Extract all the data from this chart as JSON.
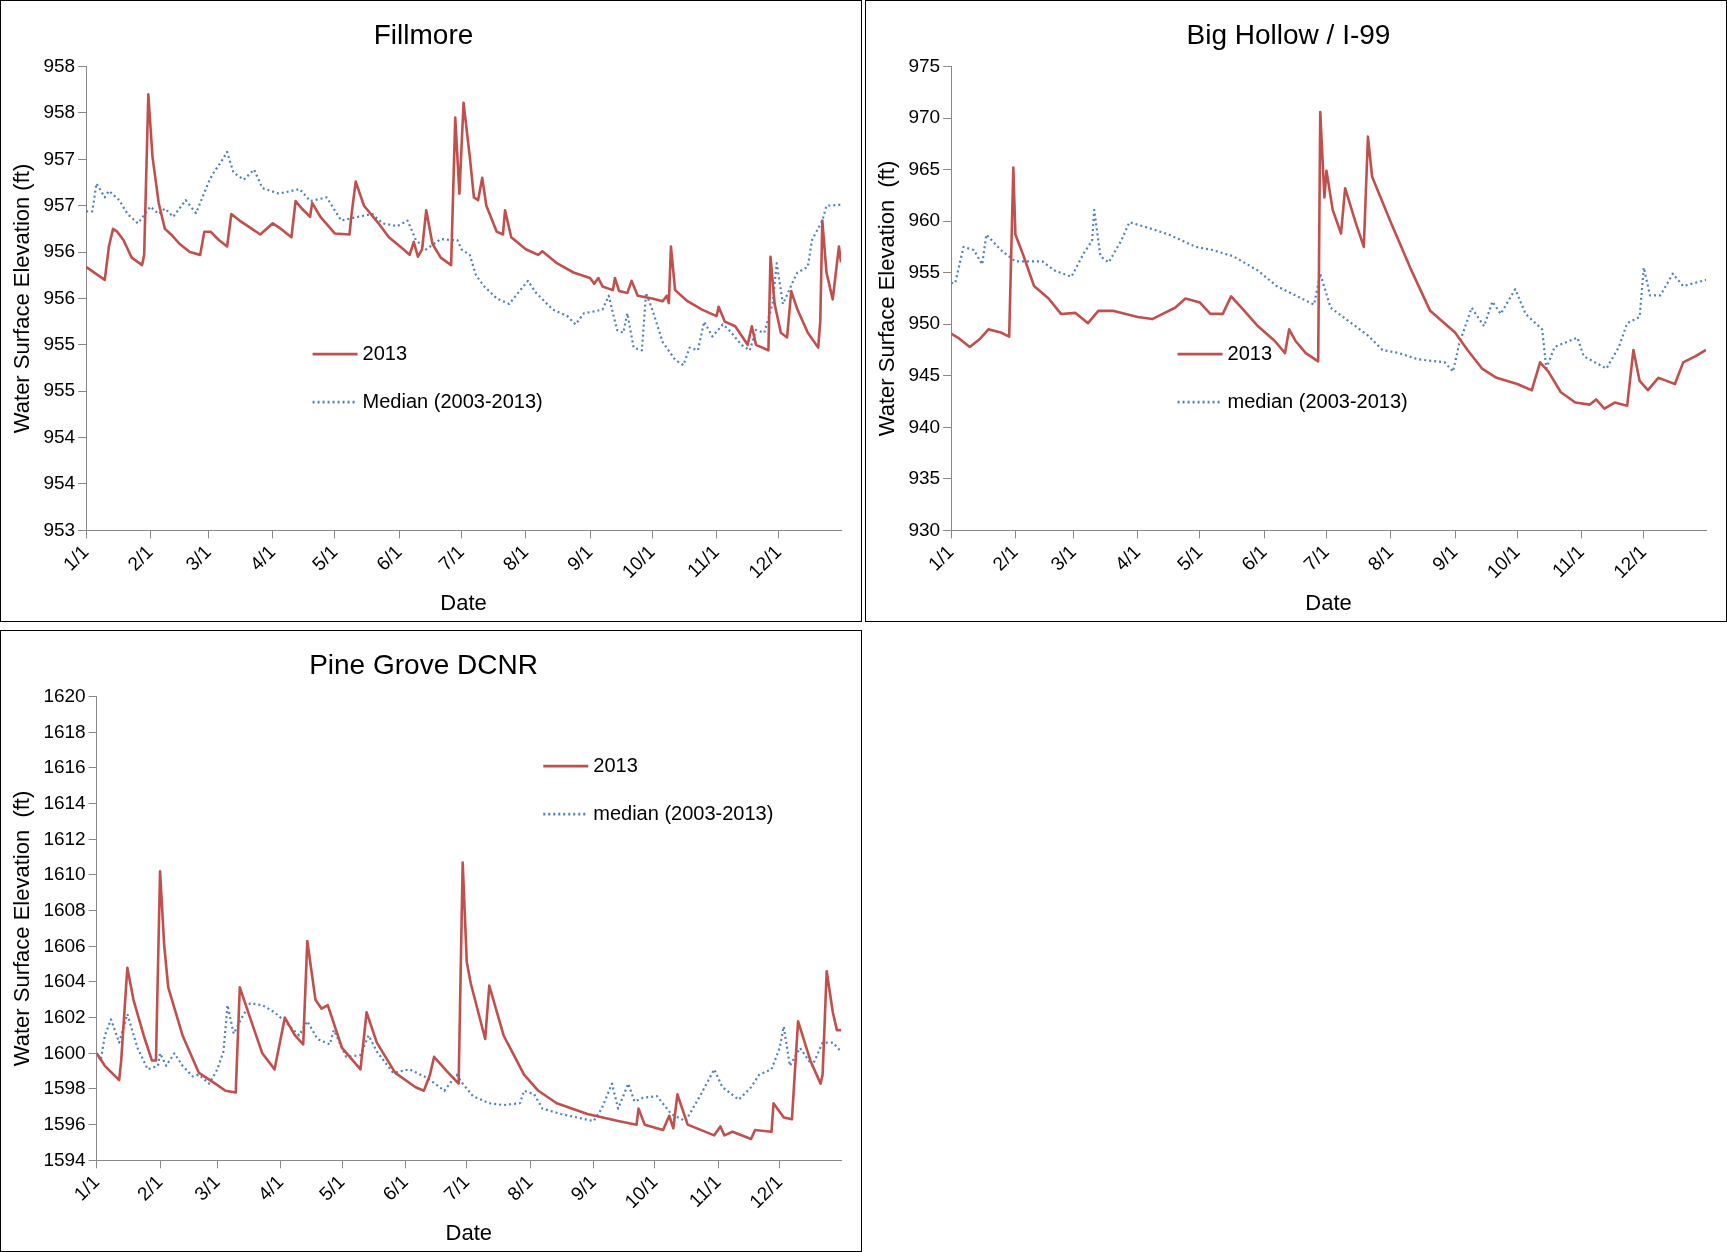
{
  "chart_data": [
    {
      "type": "line",
      "title": "Fillmore",
      "xlabel": "Date",
      "ylabel": "Water Surface Elevation (ft)",
      "legend": "bottom",
      "xlim": [
        "--01-01",
        "--12-31"
      ],
      "xticks": [
        {
          "value": "--01-01",
          "label": "1/1"
        },
        {
          "value": "--02-01",
          "label": "2/1"
        },
        {
          "value": "--03-01",
          "label": "3/1"
        },
        {
          "value": "--04-01",
          "label": "4/1"
        },
        {
          "value": "--05-01",
          "label": "5/1"
        },
        {
          "value": "--06-01",
          "label": "6/1"
        },
        {
          "value": "--07-01",
          "label": "7/1"
        },
        {
          "value": "--08-01",
          "label": "8/1"
        },
        {
          "value": "--09-01",
          "label": "9/1"
        },
        {
          "value": "--10-01",
          "label": "10/1"
        },
        {
          "value": "--11-01",
          "label": "11/1"
        },
        {
          "value": "--12-01",
          "label": "12/1"
        }
      ],
      "ylim": [
        953,
        958
      ],
      "yticks": [
        953,
        {
          "value": 953.5,
          "label": "954"
        },
        954,
        {
          "value": 954.5,
          "label": "955"
        },
        955,
        {
          "value": 955.5,
          "label": "956"
        },
        956,
        {
          "value": 956.5,
          "label": "957"
        },
        957,
        {
          "value": 957.5,
          "label": "958"
        },
        958
      ],
      "series": [
        {
          "name": "2013",
          "color": "#c0504d",
          "line_style": "solid",
          "x": [
            "--01-01",
            "--01-10",
            "--01-12",
            "--01-14",
            "--01-16",
            "--01-19",
            "--01-23",
            "--01-28",
            "--01-29",
            "--01-31",
            "--02-02",
            "--02-05",
            "--02-08",
            "--02-11",
            "--02-15",
            "--02-20",
            "--02-25",
            "--02-27",
            "--03-02",
            "--03-06",
            "--03-10",
            "--03-12",
            "--03-16",
            "--03-20",
            "--03-26",
            "--04-01",
            "--04-05",
            "--04-10",
            "--04-12",
            "--04-15",
            "--04-19",
            "--04-20",
            "--04-24",
            "--05-01",
            "--05-08",
            "--05-09",
            "--05-11",
            "--05-15",
            "--05-22",
            "--05-27",
            "--06-03",
            "--06-06",
            "--06-08",
            "--06-10",
            "--06-12",
            "--06-14",
            "--06-17",
            "--06-21",
            "--06-26",
            "--06-28",
            "--06-30",
            "--07-02",
            "--07-05",
            "--07-07",
            "--07-09",
            "--07-11",
            "--07-13",
            "--07-18",
            "--07-21",
            "--07-22",
            "--07-25",
            "--08-01",
            "--08-07",
            "--08-09",
            "--08-16",
            "--08-24",
            "--09-01",
            "--09-03",
            "--09-05",
            "--09-07",
            "--09-12",
            "--09-13",
            "--09-15",
            "--09-19",
            "--09-21",
            "--09-24",
            "--10-01",
            "--10-06",
            "--10-08",
            "--10-09",
            "--10-10",
            "--10-12",
            "--10-18",
            "--10-25",
            "--11-01",
            "--11-02",
            "--11-05",
            "--11-10",
            "--11-16",
            "--11-18",
            "--11-20",
            "--11-26",
            "--11-27",
            "--11-29",
            "--12-02",
            "--12-05",
            "--12-07",
            "--12-10",
            "--12-15",
            "--12-20",
            "--12-21",
            "--12-22",
            "--12-24",
            "--12-27",
            "--12-30",
            "--12-31"
          ],
          "values": [
            955.84,
            955.7,
            956.06,
            956.25,
            956.22,
            956.13,
            955.94,
            955.86,
            955.97,
            957.7,
            957.03,
            956.53,
            956.25,
            956.19,
            956.09,
            956.0,
            955.97,
            956.22,
            956.22,
            956.13,
            956.06,
            956.41,
            956.34,
            956.28,
            956.19,
            956.31,
            956.25,
            956.16,
            956.55,
            956.47,
            956.38,
            956.53,
            956.38,
            956.2,
            956.19,
            956.41,
            956.76,
            956.5,
            956.31,
            956.16,
            956.03,
            955.97,
            956.11,
            955.95,
            956.03,
            956.45,
            956.09,
            955.94,
            955.86,
            957.45,
            956.63,
            957.61,
            957.03,
            956.59,
            956.56,
            956.8,
            956.5,
            956.22,
            956.19,
            956.45,
            956.16,
            956.03,
            955.97,
            956.01,
            955.88,
            955.78,
            955.72,
            955.66,
            955.72,
            955.63,
            955.59,
            955.72,
            955.58,
            955.56,
            955.69,
            955.53,
            955.5,
            955.47,
            955.53,
            955.45,
            956.06,
            955.59,
            955.47,
            955.38,
            955.31,
            955.41,
            955.25,
            955.2,
            955.0,
            955.2,
            955.0,
            954.94,
            955.95,
            955.44,
            955.13,
            955.08,
            955.58,
            955.38,
            955.13,
            954.97,
            955.25,
            956.34,
            955.78,
            955.49,
            956.06,
            955.89
          ]
        },
        {
          "name": "Median (2003-2013)",
          "color": "#4f81bd",
          "line_style": "dotted",
          "x": [
            "--01-01",
            "--01-04",
            "--01-06",
            "--01-10",
            "--01-12",
            "--01-17",
            "--01-21",
            "--01-26",
            "--02-01",
            "--02-05",
            "--02-08",
            "--02-12",
            "--02-18",
            "--02-23",
            "--03-01",
            "--03-03",
            "--03-07",
            "--03-10",
            "--03-13",
            "--03-18",
            "--03-23",
            "--03-27",
            "--04-04",
            "--04-14",
            "--04-19",
            "--04-27",
            "--05-04",
            "--05-12",
            "--05-19",
            "--05-24",
            "--05-31",
            "--06-05",
            "--06-09",
            "--06-14",
            "--06-21",
            "--06-26",
            "--06-29",
            "--07-01",
            "--07-05",
            "--07-08",
            "--07-12",
            "--07-18",
            "--07-24",
            "--08-02",
            "--08-06",
            "--08-14",
            "--08-21",
            "--08-25",
            "--08-29",
            "--09-03",
            "--09-07",
            "--09-10",
            "--09-14",
            "--09-17",
            "--09-19",
            "--09-22",
            "--09-26",
            "--09-28",
            "--10-01",
            "--10-06",
            "--10-12",
            "--10-16",
            "--10-19",
            "--10-23",
            "--10-26",
            "--10-30",
            "--11-04",
            "--11-07",
            "--11-13",
            "--11-17",
            "--11-20",
            "--11-24",
            "--11-28",
            "--11-30",
            "--12-03",
            "--12-08",
            "--12-10",
            "--12-15",
            "--12-17",
            "--12-22",
            "--12-24",
            "--12-31"
          ],
          "values": [
            956.44,
            956.44,
            956.74,
            956.59,
            956.66,
            956.56,
            956.41,
            956.31,
            956.49,
            956.41,
            956.47,
            956.38,
            956.56,
            956.42,
            956.75,
            956.84,
            956.97,
            957.08,
            956.86,
            956.78,
            956.89,
            956.69,
            956.63,
            956.68,
            956.55,
            956.59,
            956.34,
            956.38,
            956.41,
            956.31,
            956.28,
            956.34,
            956.13,
            956.03,
            956.14,
            956.13,
            956.13,
            956.03,
            955.97,
            955.75,
            955.63,
            955.5,
            955.44,
            955.69,
            955.56,
            955.38,
            955.31,
            955.22,
            955.34,
            955.36,
            955.38,
            955.53,
            955.16,
            955.13,
            955.34,
            954.97,
            954.94,
            955.56,
            955.38,
            955.03,
            954.84,
            954.78,
            954.97,
            954.94,
            955.25,
            955.09,
            955.22,
            955.16,
            955.0,
            954.94,
            955.16,
            955.13,
            955.44,
            955.88,
            955.44,
            955.69,
            955.78,
            955.84,
            956.13,
            956.34,
            956.5,
            956.51
          ]
        }
      ]
    },
    {
      "type": "line",
      "title": "Big Hollow / I-99",
      "xlabel": "Date",
      "ylabel": "Water Surface Elevation  (ft)",
      "legend": "bottom",
      "xlim": [
        "--01-01",
        "--12-31"
      ],
      "xticks": [
        {
          "value": "--01-01",
          "label": "1/1"
        },
        {
          "value": "--02-01",
          "label": "2/1"
        },
        {
          "value": "--03-01",
          "label": "3/1"
        },
        {
          "value": "--04-01",
          "label": "4/1"
        },
        {
          "value": "--05-01",
          "label": "5/1"
        },
        {
          "value": "--06-01",
          "label": "6/1"
        },
        {
          "value": "--07-01",
          "label": "7/1"
        },
        {
          "value": "--08-01",
          "label": "8/1"
        },
        {
          "value": "--09-01",
          "label": "9/1"
        },
        {
          "value": "--10-01",
          "label": "10/1"
        },
        {
          "value": "--11-01",
          "label": "11/1"
        },
        {
          "value": "--12-01",
          "label": "12/1"
        }
      ],
      "ylim": [
        930,
        975
      ],
      "yticks": [
        930,
        935,
        940,
        945,
        950,
        955,
        960,
        965,
        970,
        975
      ],
      "series": [
        {
          "name": "2013",
          "color": "#c0504d",
          "line_style": "solid",
          "x": [
            "--01-01",
            "--01-05",
            "--01-10",
            "--01-15",
            "--01-19",
            "--01-25",
            "--01-29",
            "--01-31",
            "--02-01",
            "--02-05",
            "--02-10",
            "--02-17",
            "--02-23",
            "--03-02",
            "--03-08",
            "--03-13",
            "--03-20",
            "--04-01",
            "--04-08",
            "--04-13",
            "--04-19",
            "--04-24",
            "--05-01",
            "--05-06",
            "--05-12",
            "--05-16",
            "--05-21",
            "--05-29",
            "--06-06",
            "--06-11",
            "--06-13",
            "--06-16",
            "--06-21",
            "--06-27",
            "--06-28",
            "--06-30",
            "--07-01",
            "--07-04",
            "--07-08",
            "--07-10",
            "--07-15",
            "--07-19",
            "--07-21",
            "--07-23",
            "--08-01",
            "--08-11",
            "--08-20",
            "--09-01",
            "--09-07",
            "--09-14",
            "--09-21",
            "--10-01",
            "--10-08",
            "--10-12",
            "--10-16",
            "--10-22",
            "--10-29",
            "--11-05",
            "--11-08",
            "--11-12",
            "--11-17",
            "--11-23",
            "--11-26",
            "--11-29",
            "--12-03",
            "--12-08",
            "--12-12",
            "--12-16",
            "--12-20",
            "--12-26",
            "--12-31"
          ],
          "values": [
            949.1,
            948.6,
            947.8,
            948.6,
            949.5,
            949.2,
            948.8,
            965.2,
            958.7,
            956.6,
            953.7,
            952.5,
            951.0,
            951.1,
            950.1,
            951.3,
            951.3,
            950.7,
            950.5,
            951.0,
            951.6,
            952.5,
            952.1,
            951.0,
            951.0,
            952.7,
            951.6,
            949.8,
            948.4,
            947.2,
            949.5,
            948.4,
            947.2,
            946.4,
            970.6,
            962.3,
            964.9,
            961.1,
            958.8,
            963.2,
            959.9,
            957.5,
            968.2,
            964.3,
            959.9,
            955.2,
            951.3,
            949.2,
            947.5,
            945.7,
            944.8,
            944.2,
            943.6,
            946.3,
            945.4,
            943.4,
            942.4,
            942.2,
            942.7,
            941.8,
            942.4,
            942.1,
            947.5,
            944.5,
            943.6,
            944.8,
            944.5,
            944.2,
            946.3,
            946.9,
            947.5
          ]
        },
        {
          "name": "median (2003-2013)",
          "color": "#4f81bd",
          "line_style": "dotted",
          "x": [
            "--01-01",
            "--01-03",
            "--01-07",
            "--01-12",
            "--01-16",
            "--01-18",
            "--01-25",
            "--02-01",
            "--02-07",
            "--02-14",
            "--02-20",
            "--02-28",
            "--03-06",
            "--03-10",
            "--03-11",
            "--03-14",
            "--03-18",
            "--03-24",
            "--03-28",
            "--04-07",
            "--04-16",
            "--04-29",
            "--05-07",
            "--05-17",
            "--05-29",
            "--06-07",
            "--06-16",
            "--06-25",
            "--06-28",
            "--07-03",
            "--07-11",
            "--07-21",
            "--07-28",
            "--08-05",
            "--08-14",
            "--08-27",
            "--08-31",
            "--09-03",
            "--09-09",
            "--09-15",
            "--09-19",
            "--09-23",
            "--09-30",
            "--10-05",
            "--10-13",
            "--10-15",
            "--10-19",
            "--10-30",
            "--11-02",
            "--11-13",
            "--11-19",
            "--11-23",
            "--11-29",
            "--12-01",
            "--12-04",
            "--12-09",
            "--12-15",
            "--12-20",
            "--12-31"
          ],
          "values": [
            954.0,
            954.0,
            957.5,
            957.2,
            955.8,
            958.7,
            957.2,
            956.1,
            956.1,
            956.1,
            955.2,
            954.6,
            956.9,
            958.1,
            961.1,
            956.6,
            956.0,
            958.1,
            959.9,
            959.3,
            958.7,
            957.5,
            957.2,
            956.6,
            955.2,
            953.7,
            952.8,
            951.9,
            954.9,
            951.6,
            950.4,
            948.9,
            947.5,
            947.2,
            946.6,
            946.3,
            945.4,
            948.1,
            951.6,
            949.8,
            952.2,
            951.0,
            953.4,
            951.0,
            949.5,
            945.7,
            947.8,
            948.7,
            946.9,
            945.7,
            947.8,
            950.1,
            950.7,
            955.5,
            952.8,
            952.8,
            954.9,
            953.7,
            954.3
          ]
        }
      ]
    },
    {
      "type": "line",
      "title": "Pine Grove DCNR",
      "xlabel": "Date",
      "ylabel": "Water Surface Elevation  (ft)",
      "legend": "top right",
      "xlim": [
        "--01-01",
        "--12-31"
      ],
      "xticks": [
        {
          "value": "--01-01",
          "label": "1/1"
        },
        {
          "value": "--02-01",
          "label": "2/1"
        },
        {
          "value": "--03-01",
          "label": "3/1"
        },
        {
          "value": "--04-01",
          "label": "4/1"
        },
        {
          "value": "--05-01",
          "label": "5/1"
        },
        {
          "value": "--06-01",
          "label": "6/1"
        },
        {
          "value": "--07-01",
          "label": "7/1"
        },
        {
          "value": "--08-01",
          "label": "8/1"
        },
        {
          "value": "--09-01",
          "label": "9/1"
        },
        {
          "value": "--10-01",
          "label": "10/1"
        },
        {
          "value": "--11-01",
          "label": "11/1"
        },
        {
          "value": "--12-01",
          "label": "12/1"
        }
      ],
      "ylim": [
        1594,
        1620
      ],
      "yticks": [
        1594,
        1596,
        1598,
        1600,
        1602,
        1604,
        1606,
        1608,
        1610,
        1612,
        1614,
        1616,
        1618,
        1620
      ],
      "series": [
        {
          "name": "2013",
          "color": "#c0504d",
          "line_style": "solid",
          "x": [
            "--01-01",
            "--01-05",
            "--01-12",
            "--01-13",
            "--01-16",
            "--01-19",
            "--01-24",
            "--01-28",
            "--01-30",
            "--02-01",
            "--02-03",
            "--02-05",
            "--02-12",
            "--02-20",
            "--02-28",
            "--03-05",
            "--03-10",
            "--03-12",
            "--03-17",
            "--03-23",
            "--03-29",
            "--04-03",
            "--04-08",
            "--04-12",
            "--04-14",
            "--04-18",
            "--04-21",
            "--04-24",
            "--05-01",
            "--05-10",
            "--05-13",
            "--05-18",
            "--05-27",
            "--06-06",
            "--06-10",
            "--06-13",
            "--06-15",
            "--06-22",
            "--06-27",
            "--06-29",
            "--07-01",
            "--07-03",
            "--07-10",
            "--07-12",
            "--07-19",
            "--07-29",
            "--08-05",
            "--08-14",
            "--08-29",
            "--09-13",
            "--09-22",
            "--09-23",
            "--09-26",
            "--10-05",
            "--10-08",
            "--10-10",
            "--10-12",
            "--10-17",
            "--10-30",
            "--11-02",
            "--11-04",
            "--11-08",
            "--11-17",
            "--11-19",
            "--11-27",
            "--11-28",
            "--12-03",
            "--12-07",
            "--12-10",
            "--12-16",
            "--12-21",
            "--12-22",
            "--12-24",
            "--12-27",
            "--12-29",
            "--12-31"
          ],
          "values": [
            1600.0,
            1599.3,
            1598.5,
            1599.6,
            1604.8,
            1603.0,
            1601.0,
            1599.6,
            1599.6,
            1610.2,
            1606.1,
            1603.7,
            1601.0,
            1598.9,
            1598.3,
            1597.9,
            1597.8,
            1603.7,
            1602.0,
            1600.0,
            1599.1,
            1602.0,
            1601.0,
            1600.5,
            1606.3,
            1603.0,
            1602.5,
            1602.7,
            1600.3,
            1599.1,
            1602.3,
            1600.6,
            1598.9,
            1598.1,
            1597.9,
            1598.8,
            1599.8,
            1598.9,
            1598.3,
            1610.7,
            1605.1,
            1603.9,
            1600.8,
            1603.8,
            1601.0,
            1598.8,
            1597.9,
            1597.2,
            1596.6,
            1596.2,
            1596.0,
            1596.9,
            1596.0,
            1595.7,
            1596.5,
            1595.8,
            1597.7,
            1596.0,
            1595.4,
            1595.9,
            1595.4,
            1595.6,
            1595.2,
            1595.7,
            1595.6,
            1597.2,
            1596.4,
            1596.3,
            1601.8,
            1599.6,
            1598.3,
            1598.8,
            1604.6,
            1602.3,
            1601.3,
            1601.3
          ]
        },
        {
          "name": "median (2003-2013)",
          "color": "#4f81bd",
          "line_style": "dotted",
          "x": [
            "--01-01",
            "--01-03",
            "--01-05",
            "--01-08",
            "--01-12",
            "--01-16",
            "--01-21",
            "--01-26",
            "--01-31",
            "--02-01",
            "--02-04",
            "--02-08",
            "--02-12",
            "--02-17",
            "--02-20",
            "--02-25",
            "--03-01",
            "--03-04",
            "--03-06",
            "--03-09",
            "--03-13",
            "--03-17",
            "--03-23",
            "--03-29",
            "--04-03",
            "--04-10",
            "--04-14",
            "--04-19",
            "--04-25",
            "--04-27",
            "--05-03",
            "--05-10",
            "--05-14",
            "--05-18",
            "--05-26",
            "--06-03",
            "--06-12",
            "--06-20",
            "--06-26",
            "--06-29",
            "--07-04",
            "--07-12",
            "--07-19",
            "--07-27",
            "--07-29",
            "--08-03",
            "--08-07",
            "--08-16",
            "--08-24",
            "--09-01",
            "--09-05",
            "--09-10",
            "--09-13",
            "--09-18",
            "--09-21",
            "--09-25",
            "--10-02",
            "--10-09",
            "--10-16",
            "--10-23",
            "--10-30",
            "--11-03",
            "--11-11",
            "--11-17",
            "--11-21",
            "--11-27",
            "--12-01",
            "--12-03",
            "--12-06",
            "--12-11",
            "--12-17",
            "--12-22",
            "--12-27",
            "--12-31"
          ],
          "values": [
            1600.0,
            1599.6,
            1601.0,
            1601.9,
            1600.6,
            1602.2,
            1600.3,
            1599.1,
            1599.3,
            1600.0,
            1599.3,
            1600.0,
            1599.3,
            1598.7,
            1598.8,
            1598.3,
            1599.1,
            1600.1,
            1602.7,
            1601.1,
            1602.0,
            1602.8,
            1602.7,
            1602.3,
            1601.8,
            1601.0,
            1601.8,
            1600.8,
            1600.5,
            1601.3,
            1599.8,
            1599.9,
            1601.0,
            1600.1,
            1598.9,
            1599.1,
            1598.6,
            1597.9,
            1598.8,
            1598.3,
            1597.6,
            1597.2,
            1597.1,
            1597.2,
            1597.9,
            1597.7,
            1596.9,
            1596.6,
            1596.4,
            1596.2,
            1596.9,
            1598.3,
            1596.9,
            1598.3,
            1597.3,
            1597.5,
            1597.6,
            1596.6,
            1596.2,
            1597.6,
            1599.1,
            1598.1,
            1597.4,
            1598.1,
            1598.8,
            1599.1,
            1600.3,
            1601.5,
            1599.3,
            1600.3,
            1599.3,
            1600.6,
            1600.6,
            1600.1
          ]
        }
      ]
    }
  ]
}
